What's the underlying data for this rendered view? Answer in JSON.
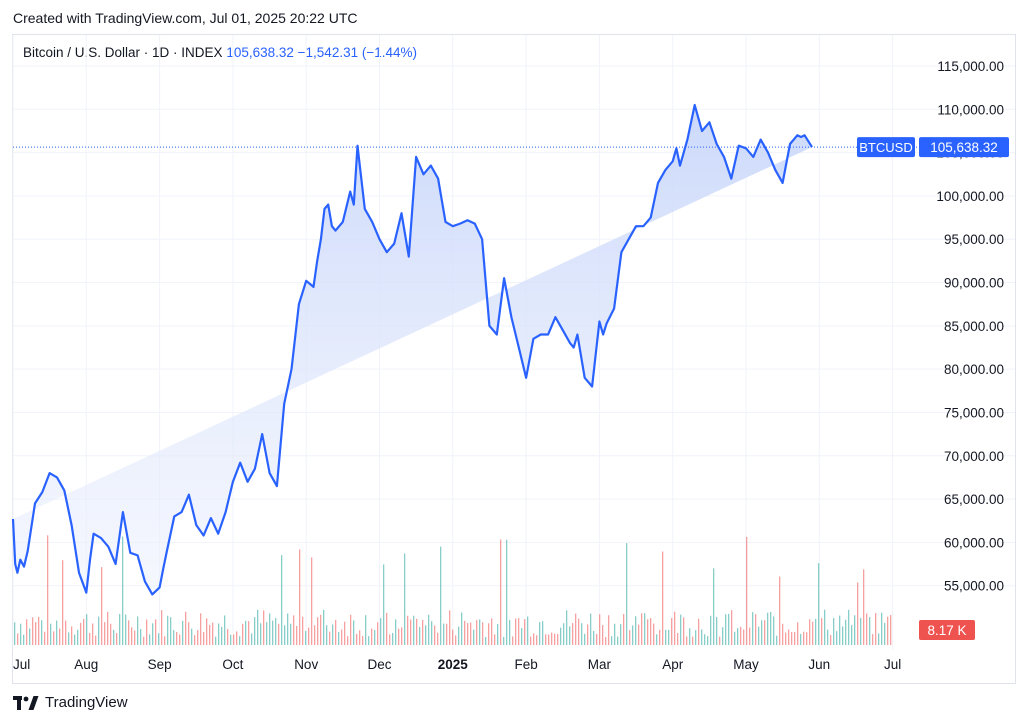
{
  "header": {
    "created": "Created with TradingView.com, Jul 01, 2025 20:22 UTC"
  },
  "legend": {
    "symbol": "Bitcoin / U.S. Dollar · 1D · INDEX",
    "price": "105,638.32",
    "change": "−1,542.31 (−1.44%)"
  },
  "footer": {
    "brand": "TradingView"
  },
  "colors": {
    "line": "#2962ff",
    "area_top": "#cdd9fb",
    "up": "#26a69a",
    "down": "#ef5350",
    "price_tag": "#2962ff",
    "vol_tag": "#ef5350"
  },
  "chart_data": {
    "type": "area",
    "title": "Bitcoin / U.S. Dollar · 1D · INDEX",
    "series_name": "BTCUSD",
    "last_value_label": "105,638.32",
    "last_value": 105638.32,
    "volume_label": "8.17 K",
    "x_labels": [
      "Jul",
      "Aug",
      "Sep",
      "Oct",
      "Nov",
      "Dec",
      "2025",
      "Feb",
      "Mar",
      "Apr",
      "May",
      "Jun",
      "Jul"
    ],
    "x_label_months": [
      0,
      1,
      2,
      3,
      4,
      5,
      6,
      7,
      8,
      9,
      10,
      11,
      12
    ],
    "y_ticks": [
      55000,
      60000,
      65000,
      70000,
      75000,
      80000,
      85000,
      90000,
      95000,
      100000,
      105000,
      110000,
      115000
    ],
    "y_tick_labels": [
      "55,000.00",
      "60,000.00",
      "65,000.00",
      "70,000.00",
      "75,000.00",
      "80,000.00",
      "85,000.00",
      "90,000.00",
      "95,000.00",
      "100,000.00",
      "105,000.00",
      "110,000.00",
      "115,000.00"
    ],
    "ylim": [
      48000,
      117500
    ],
    "x_months": [
      0.0,
      0.03,
      0.06,
      0.1,
      0.15,
      0.2,
      0.3,
      0.4,
      0.5,
      0.6,
      0.7,
      0.8,
      0.9,
      1.0,
      1.05,
      1.1,
      1.2,
      1.3,
      1.4,
      1.5,
      1.6,
      1.7,
      1.8,
      1.9,
      2.0,
      2.05,
      2.1,
      2.2,
      2.3,
      2.4,
      2.5,
      2.6,
      2.7,
      2.8,
      2.9,
      3.0,
      3.1,
      3.2,
      3.3,
      3.4,
      3.5,
      3.6,
      3.7,
      3.8,
      3.9,
      4.0,
      4.1,
      4.15,
      4.2,
      4.25,
      4.3,
      4.35,
      4.4,
      4.5,
      4.6,
      4.65,
      4.7,
      4.8,
      4.9,
      5.0,
      5.1,
      5.2,
      5.3,
      5.4,
      5.5,
      5.6,
      5.7,
      5.8,
      5.9,
      6.0,
      6.1,
      6.2,
      6.3,
      6.4,
      6.5,
      6.6,
      6.7,
      6.8,
      6.9,
      7.0,
      7.1,
      7.2,
      7.3,
      7.4,
      7.5,
      7.6,
      7.65,
      7.7,
      7.8,
      7.9,
      8.0,
      8.05,
      8.1,
      8.2,
      8.3,
      8.4,
      8.5,
      8.6,
      8.7,
      8.8,
      8.9,
      9.0,
      9.05,
      9.1,
      9.2,
      9.3,
      9.4,
      9.5,
      9.6,
      9.7,
      9.8,
      9.9,
      10.0,
      10.1,
      10.2,
      10.3,
      10.4,
      10.5,
      10.6,
      10.7,
      10.75,
      10.8,
      10.9,
      11.0,
      11.1,
      11.2,
      11.25,
      11.3,
      11.4,
      11.5,
      11.6,
      11.7,
      11.8,
      11.9,
      12.0
    ],
    "prices": [
      62700,
      57500,
      56500,
      58000,
      57200,
      59000,
      64500,
      65800,
      68000,
      67500,
      66000,
      62000,
      56500,
      54200,
      58000,
      61000,
      60500,
      59500,
      57500,
      63500,
      58800,
      58500,
      55500,
      54000,
      54800,
      57000,
      59000,
      63000,
      63500,
      65500,
      62000,
      60800,
      62800,
      61000,
      63500,
      67000,
      69200,
      67000,
      68500,
      72500,
      68000,
      66500,
      76000,
      80000,
      87500,
      90200,
      89500,
      92500,
      95000,
      98500,
      99000,
      96500,
      96000,
      97000,
      100500,
      99000,
      105800,
      98500,
      97000,
      95000,
      93500,
      94500,
      98000,
      93000,
      104500,
      102500,
      103500,
      102000,
      97000,
      96500,
      96800,
      97200,
      96800,
      95000,
      85000,
      84000,
      90500,
      86000,
      82500,
      79000,
      83500,
      84000,
      84000,
      86000,
      84500,
      83000,
      82500,
      84000,
      79000,
      78000,
      85500,
      84000,
      85300,
      87000,
      93500,
      95000,
      96500,
      96500,
      97500,
      101500,
      103000,
      104000,
      105500,
      103500,
      106500,
      110500,
      107500,
      108500,
      106000,
      104500,
      102000,
      105800,
      105500,
      104500,
      106500,
      105000,
      103000,
      101500,
      106000,
      107000,
      106800,
      107000,
      105638
    ]
  }
}
